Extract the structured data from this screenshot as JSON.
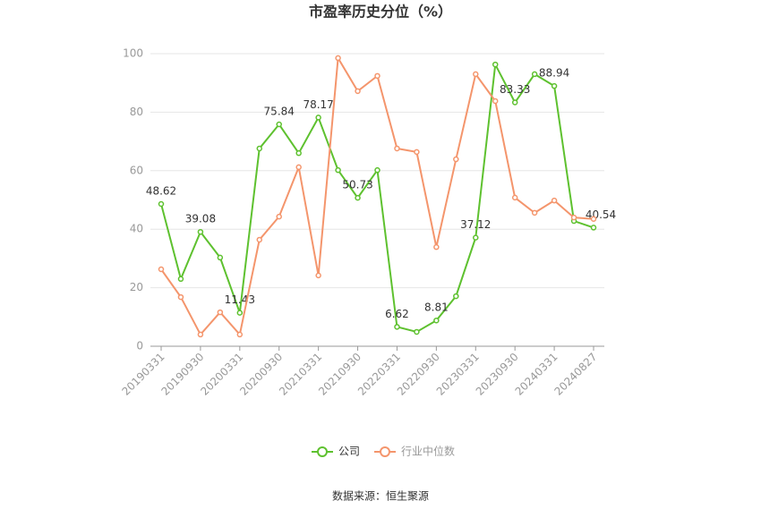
{
  "chart_data": {
    "type": "line",
    "title": "市盈率历史分位（%）",
    "categories": [
      "20190331",
      null,
      "20190930",
      null,
      "20200331",
      null,
      "20200930",
      null,
      "20210331",
      null,
      "20210930",
      null,
      "20220331",
      null,
      "20220930",
      null,
      "20230331",
      null,
      "20230930",
      null,
      "20240331",
      null,
      "20240827"
    ],
    "series": [
      {
        "name": "公司",
        "color": "#5ec12f",
        "values": [
          48.62,
          23,
          39.08,
          30.3,
          11.43,
          67.6,
          75.84,
          66,
          78.17,
          60.2,
          50.73,
          60.2,
          6.62,
          4.9,
          8.81,
          17.1,
          37.12,
          96.3,
          83.33,
          93,
          88.94,
          42.8,
          40.54
        ],
        "value_labels": [
          "48.62",
          null,
          "39.08",
          null,
          "11.43",
          null,
          "75.84",
          null,
          "78.17",
          null,
          "50.73",
          null,
          "6.62",
          null,
          "8.81",
          null,
          "37.12",
          null,
          "83.33",
          null,
          "88.94",
          null,
          "40.54"
        ]
      },
      {
        "name": "行业中位数",
        "color": "#f4956c",
        "values": [
          26.3,
          16.8,
          4,
          11.6,
          4,
          36.4,
          44.3,
          61.2,
          24.2,
          98.5,
          87.2,
          92.4,
          67.6,
          66.4,
          33.9,
          63.9,
          93,
          83.8,
          50.8,
          45.6,
          49.8,
          44,
          43.5
        ]
      }
    ],
    "ylim": [
      0,
      100
    ],
    "yticks": [
      0,
      20,
      40,
      60,
      80,
      100
    ],
    "grid": true,
    "legend": "bottom",
    "source": "数据来源：恒生聚源"
  }
}
